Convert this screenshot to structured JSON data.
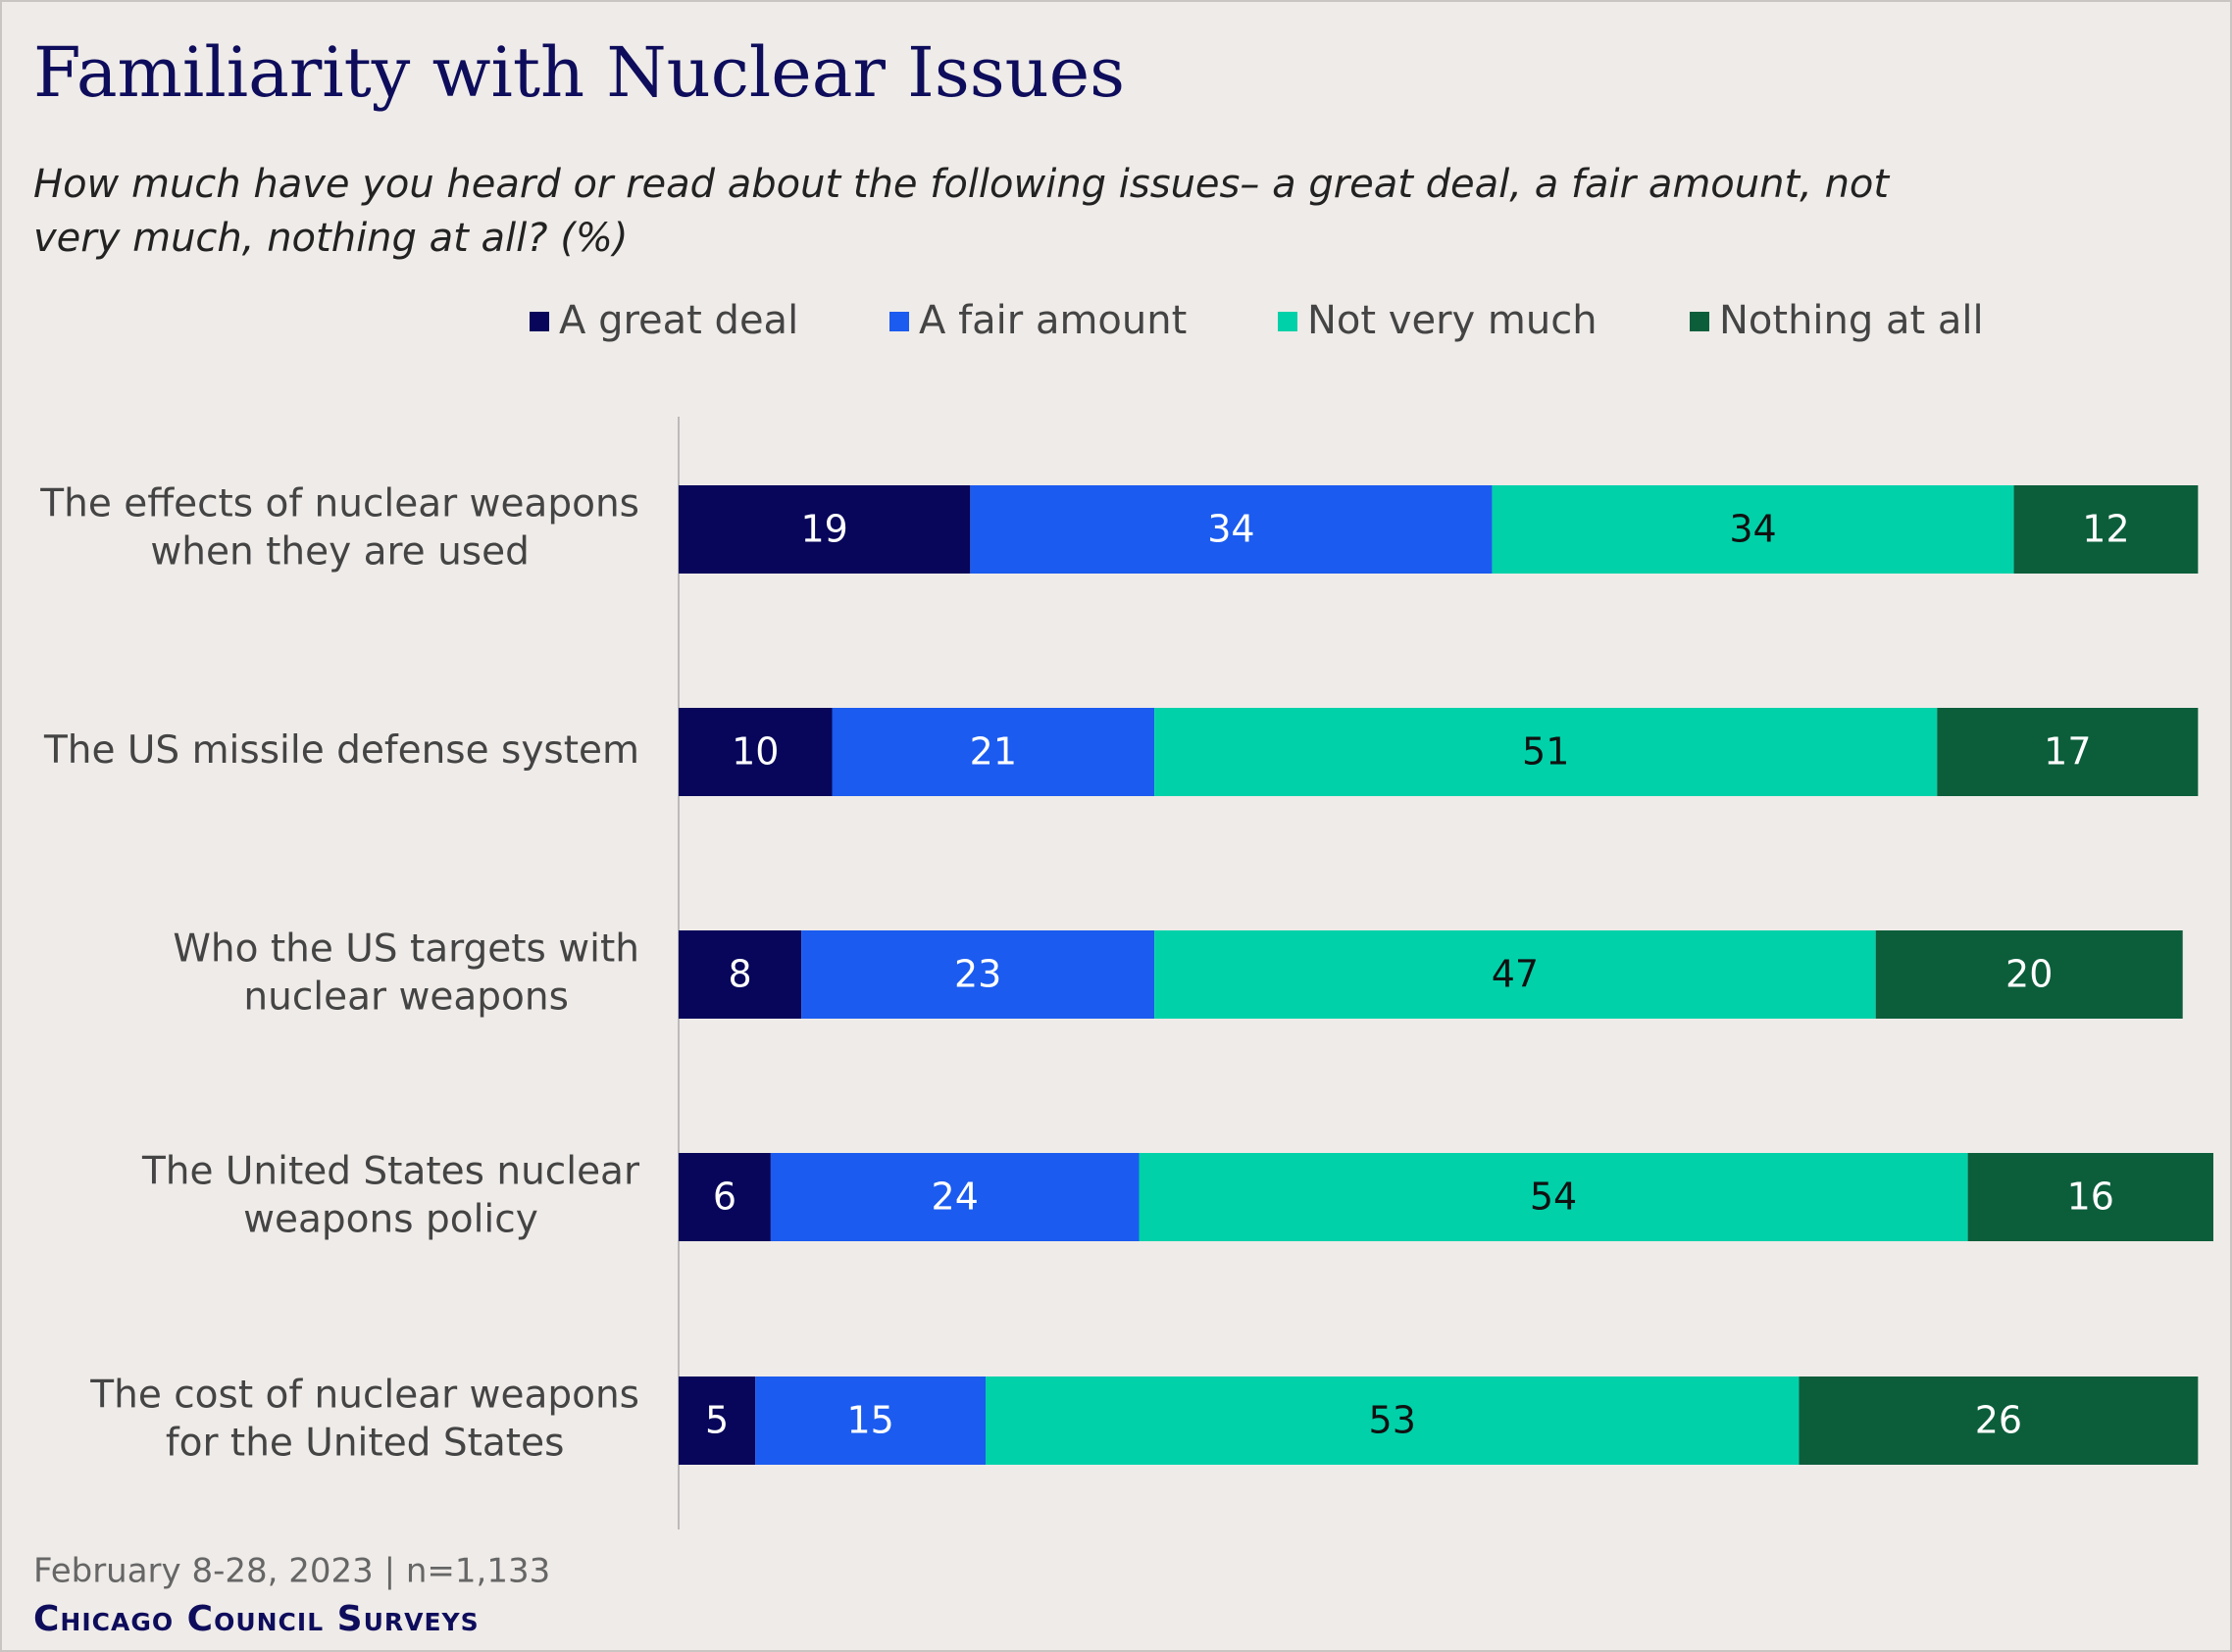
{
  "chart_data": {
    "type": "stacked_barh",
    "title": "Familiarity with Nuclear Issues",
    "subtitle": [
      "How much have you heard or read about the following issues– a great deal, a fair amount, not",
      "very much, nothing at all? (%)"
    ],
    "categories": [
      "The effects of nuclear weapons\nwhen they are used",
      "The US missile defense system",
      "Who the US targets with\nnuclear weapons",
      "The United States nuclear\nweapons policy",
      "The cost of nuclear weapons\nfor the United States"
    ],
    "series": [
      {
        "name": "A great deal",
        "color": "#07065a",
        "label_color": "#ffffff",
        "values": [
          19,
          10,
          8,
          6,
          5
        ]
      },
      {
        "name": "A fair amount",
        "color": "#1b5bef",
        "label_color": "#ffffff",
        "values": [
          34,
          21,
          23,
          24,
          15
        ]
      },
      {
        "name": "Not very much",
        "color": "#00d1a9",
        "label_color": "#111111",
        "values": [
          34,
          51,
          47,
          54,
          53
        ]
      },
      {
        "name": "Nothing at all",
        "color": "#0c5e3b",
        "label_color": "#ffffff",
        "values": [
          12,
          17,
          20,
          16,
          26
        ]
      }
    ],
    "xlim": [
      0,
      100
    ],
    "legend": "top",
    "note": "February 8-28, 2023 | n=1,133",
    "source": "Chicago Council Surveys"
  }
}
